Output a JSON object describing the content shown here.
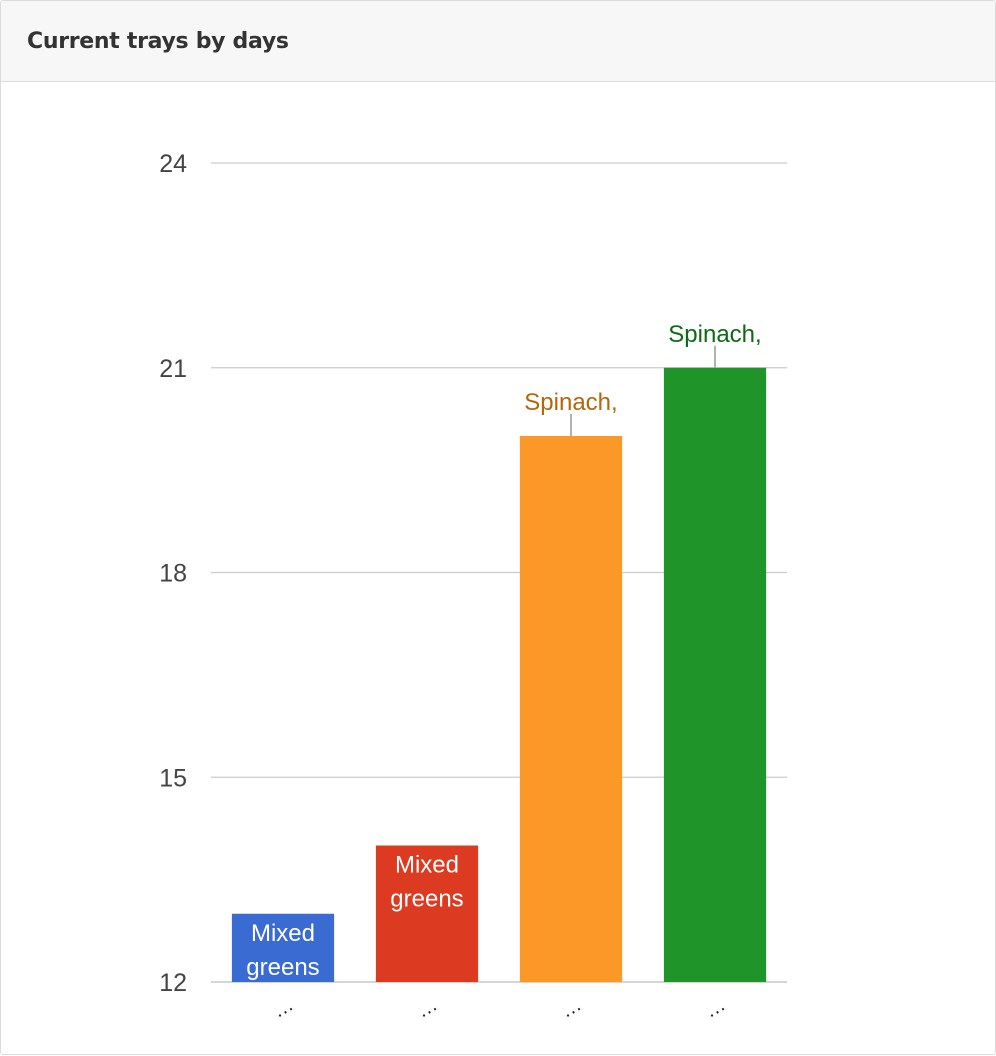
{
  "panel": {
    "title": "Current trays by days"
  },
  "chart_data": {
    "type": "bar",
    "title": "",
    "xlabel": "",
    "ylabel": "",
    "ylim": [
      12,
      24
    ],
    "yticks": [
      12,
      15,
      18,
      21,
      24
    ],
    "grid": true,
    "categories": [
      "…",
      "…",
      "…",
      "…"
    ],
    "values": [
      13,
      14,
      20,
      21
    ],
    "bar_colors": [
      "#3366cc",
      "#dc3912",
      "#ff9900",
      "#109618"
    ],
    "bar_fill_colors": [
      "#3a6bd2",
      "#dc3b22",
      "#fc9827",
      "#1f9428"
    ],
    "data_labels": [
      {
        "lines": [
          "Mixed",
          "greens"
        ],
        "position": "inside",
        "color": "#ffffff"
      },
      {
        "lines": [
          "Mixed",
          "greens"
        ],
        "position": "inside",
        "color": "#ffffff"
      },
      {
        "lines": [
          "Spinach,"
        ],
        "position": "above",
        "color": "#b3660c"
      },
      {
        "lines": [
          "Spinach,"
        ],
        "position": "above",
        "color": "#0c6a14"
      }
    ]
  }
}
